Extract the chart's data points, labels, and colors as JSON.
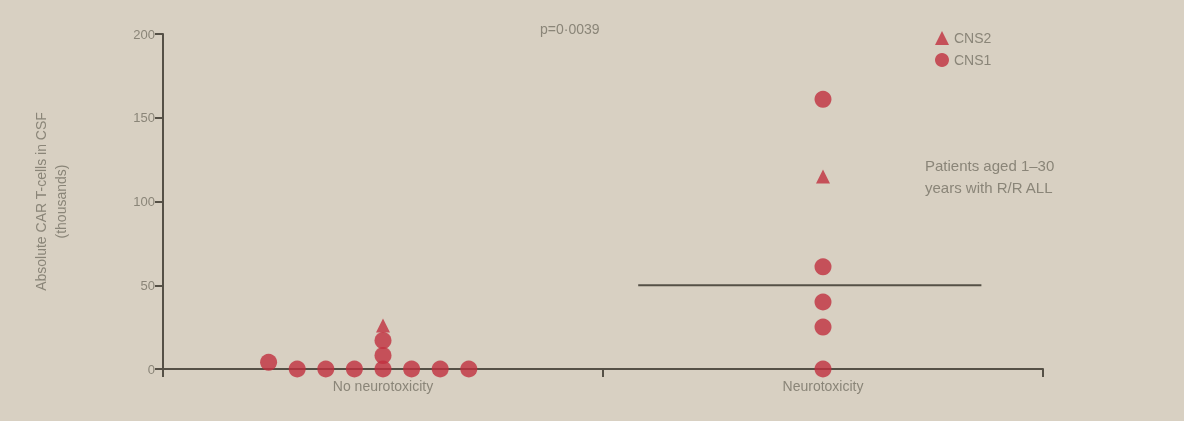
{
  "chart_data": {
    "type": "scatter",
    "categories": [
      "No neurotoxicity",
      "Neurotoxicity"
    ],
    "ylabel": "Absolute CAR T-cells in CSF\n(thousands)",
    "ylim": [
      0,
      200
    ],
    "yticks": [
      0,
      50,
      100,
      150,
      200
    ],
    "series": [
      {
        "name": "CNS2",
        "color": "#c0303f",
        "marker": "triangle",
        "x": [
          "No neurotoxicity",
          "Neurotoxicity"
        ],
        "values": [
          26,
          115
        ]
      },
      {
        "name": "CNS1",
        "color": "#c0303f",
        "marker": "circle",
        "x": [
          "No neurotoxicity",
          "No neurotoxicity",
          "No neurotoxicity",
          "No neurotoxicity",
          "No neurotoxicity",
          "No neurotoxicity",
          "No neurotoxicity",
          "No neurotoxicity",
          "No neurotoxicity",
          "No neurotoxicity",
          "Neurotoxicity",
          "Neurotoxicity",
          "Neurotoxicity",
          "Neurotoxicity",
          "Neurotoxicity"
        ],
        "values": [
          0,
          0,
          0,
          0,
          0,
          0,
          0,
          4,
          8,
          17,
          161,
          61,
          40,
          25,
          0
        ]
      }
    ],
    "ref_lines": [
      {
        "axis": "y",
        "value": 50,
        "label": null,
        "color": "#555046"
      }
    ],
    "annotations": [
      "p=0·0039",
      "Patients aged 1–30 years with R/R ALL"
    ],
    "legend": "top right",
    "grid": false
  }
}
